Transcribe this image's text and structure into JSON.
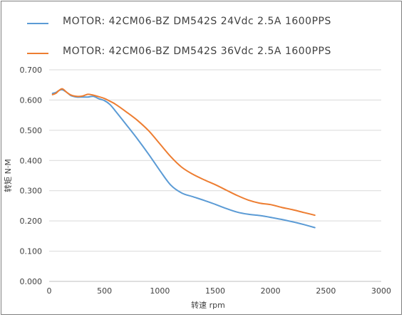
{
  "chart_data": {
    "type": "line",
    "title": "",
    "xlabel": "转速 rpm",
    "ylabel": "转矩 N·M",
    "xlim": [
      0,
      3000
    ],
    "ylim": [
      0,
      0.7
    ],
    "x_ticks": [
      0,
      500,
      1000,
      1500,
      2000,
      2500,
      3000
    ],
    "y_ticks": [
      0,
      0.1,
      0.2,
      0.3,
      0.4,
      0.5,
      0.6,
      0.7
    ],
    "y_tick_labels": [
      "0.000",
      "0.100",
      "0.200",
      "0.300",
      "0.400",
      "0.500",
      "0.600",
      "0.700"
    ],
    "grid": "horizontal",
    "legend_position": "top-left",
    "series": [
      {
        "name": "MOTOR: 42CM06-BZ  DM542S  24Vdc  2.5A  1600PPS",
        "color": "#5b9bd5",
        "x": [
          30,
          60,
          90,
          120,
          160,
          200,
          250,
          300,
          350,
          400,
          450,
          500,
          550,
          600,
          700,
          800,
          900,
          1000,
          1100,
          1200,
          1300,
          1400,
          1500,
          1600,
          1700,
          1800,
          1900,
          2000,
          2100,
          2200,
          2300,
          2400
        ],
        "y": [
          0.622,
          0.625,
          0.632,
          0.634,
          0.625,
          0.614,
          0.61,
          0.61,
          0.61,
          0.612,
          0.604,
          0.598,
          0.585,
          0.563,
          0.517,
          0.47,
          0.42,
          0.367,
          0.318,
          0.292,
          0.28,
          0.268,
          0.255,
          0.241,
          0.229,
          0.222,
          0.218,
          0.212,
          0.205,
          0.197,
          0.188,
          0.178
        ]
      },
      {
        "name": "MOTOR: 42CM06-BZ  DM542S  36Vdc  2.5A  1600PPS",
        "color": "#ed7d31",
        "x": [
          30,
          60,
          90,
          120,
          160,
          200,
          250,
          300,
          350,
          400,
          450,
          500,
          550,
          600,
          700,
          800,
          900,
          1000,
          1100,
          1200,
          1300,
          1400,
          1500,
          1600,
          1700,
          1800,
          1900,
          2000,
          2100,
          2200,
          2300,
          2400
        ],
        "y": [
          0.618,
          0.622,
          0.632,
          0.637,
          0.625,
          0.616,
          0.612,
          0.613,
          0.619,
          0.616,
          0.611,
          0.605,
          0.596,
          0.586,
          0.56,
          0.532,
          0.498,
          0.455,
          0.412,
          0.377,
          0.354,
          0.336,
          0.32,
          0.302,
          0.284,
          0.269,
          0.259,
          0.254,
          0.245,
          0.237,
          0.228,
          0.219
        ]
      }
    ]
  }
}
